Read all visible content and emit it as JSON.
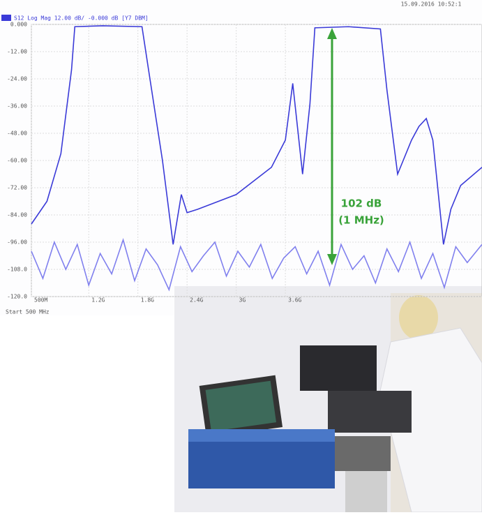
{
  "chart_data": {
    "type": "line",
    "header": "S12 Log Mag 12.00 dB/ -0.000 dB [Y7 DBM]",
    "timestamp": "15.09.2016 10:52:1",
    "footer": "Start 500 MHz",
    "annotations": [
      "102 dB",
      "(1 MHz)"
    ],
    "annotation_color": "#3aa33a",
    "grid": true,
    "xlim": [
      0.5,
      6.0
    ],
    "xticks": [
      {
        "value": 0.5,
        "label": "500M"
      },
      {
        "value": 1.2,
        "label": "1.2G"
      },
      {
        "value": 1.8,
        "label": "1.8G"
      },
      {
        "value": 2.4,
        "label": "2.4G"
      },
      {
        "value": 3.0,
        "label": "3G"
      },
      {
        "value": 3.6,
        "label": "3.6G"
      }
    ],
    "ylim": [
      -120,
      0
    ],
    "yticks": [
      {
        "value": 0,
        "label": "0.000"
      },
      {
        "value": -12,
        "label": "-12.00"
      },
      {
        "value": -24,
        "label": "-24.00"
      },
      {
        "value": -36,
        "label": "-36.00"
      },
      {
        "value": -48,
        "label": "-48.00"
      },
      {
        "value": -60,
        "label": "-60.00"
      },
      {
        "value": -72,
        "label": "-72.00"
      },
      {
        "value": -84,
        "label": "-84.00"
      },
      {
        "value": -96,
        "label": "-96.00"
      },
      {
        "value": -108,
        "label": "-108.0"
      },
      {
        "value": -120,
        "label": "-120.0"
      }
    ],
    "series": [
      {
        "color": "#3a3ad8",
        "x": [
          0.5,
          0.69,
          0.86,
          0.99,
          1.03,
          1.37,
          1.85,
          1.93,
          2.1,
          2.23,
          2.33,
          2.4,
          2.53,
          3.0,
          3.43,
          3.6,
          3.69,
          3.81,
          3.9,
          3.96,
          4.37,
          4.76,
          4.84,
          4.97,
          5.14,
          5.23,
          5.32,
          5.4,
          5.53,
          5.62,
          5.74,
          6.0
        ],
        "values": [
          -88,
          -78,
          -57,
          -20,
          -1,
          -0.6,
          -1,
          -20,
          -60,
          -97,
          -75,
          -83,
          -81.5,
          -75,
          -63,
          -51,
          -26,
          -66,
          -35,
          -1.5,
          -1,
          -2,
          -29,
          -66,
          -51,
          -45,
          -41.5,
          -51,
          -97,
          -81.5,
          -71,
          -63
        ]
      },
      {
        "color": "#8080ee",
        "x": [
          0.5,
          0.64,
          0.78,
          0.92,
          1.06,
          1.2,
          1.34,
          1.48,
          1.62,
          1.76,
          1.9,
          2.04,
          2.18,
          2.32,
          2.46,
          2.6,
          2.74,
          2.88,
          3.02,
          3.16,
          3.3,
          3.44,
          3.58,
          3.72,
          3.86,
          4.0,
          4.14,
          4.28,
          4.42,
          4.56,
          4.7,
          4.84,
          4.98,
          5.12,
          5.26,
          5.4,
          5.54,
          5.68,
          5.82,
          6.0
        ],
        "values": [
          -100,
          -112,
          -96,
          -108,
          -97,
          -115,
          -101,
          -110,
          -95,
          -113,
          -99,
          -106,
          -117,
          -98,
          -109,
          -102,
          -96,
          -111,
          -100,
          -107,
          -97,
          -112,
          -103,
          -98,
          -110,
          -100,
          -115,
          -97,
          -108,
          -102,
          -114,
          -99,
          -109,
          -96,
          -112,
          -101,
          -116,
          -98,
          -105,
          -97
        ]
      }
    ]
  }
}
